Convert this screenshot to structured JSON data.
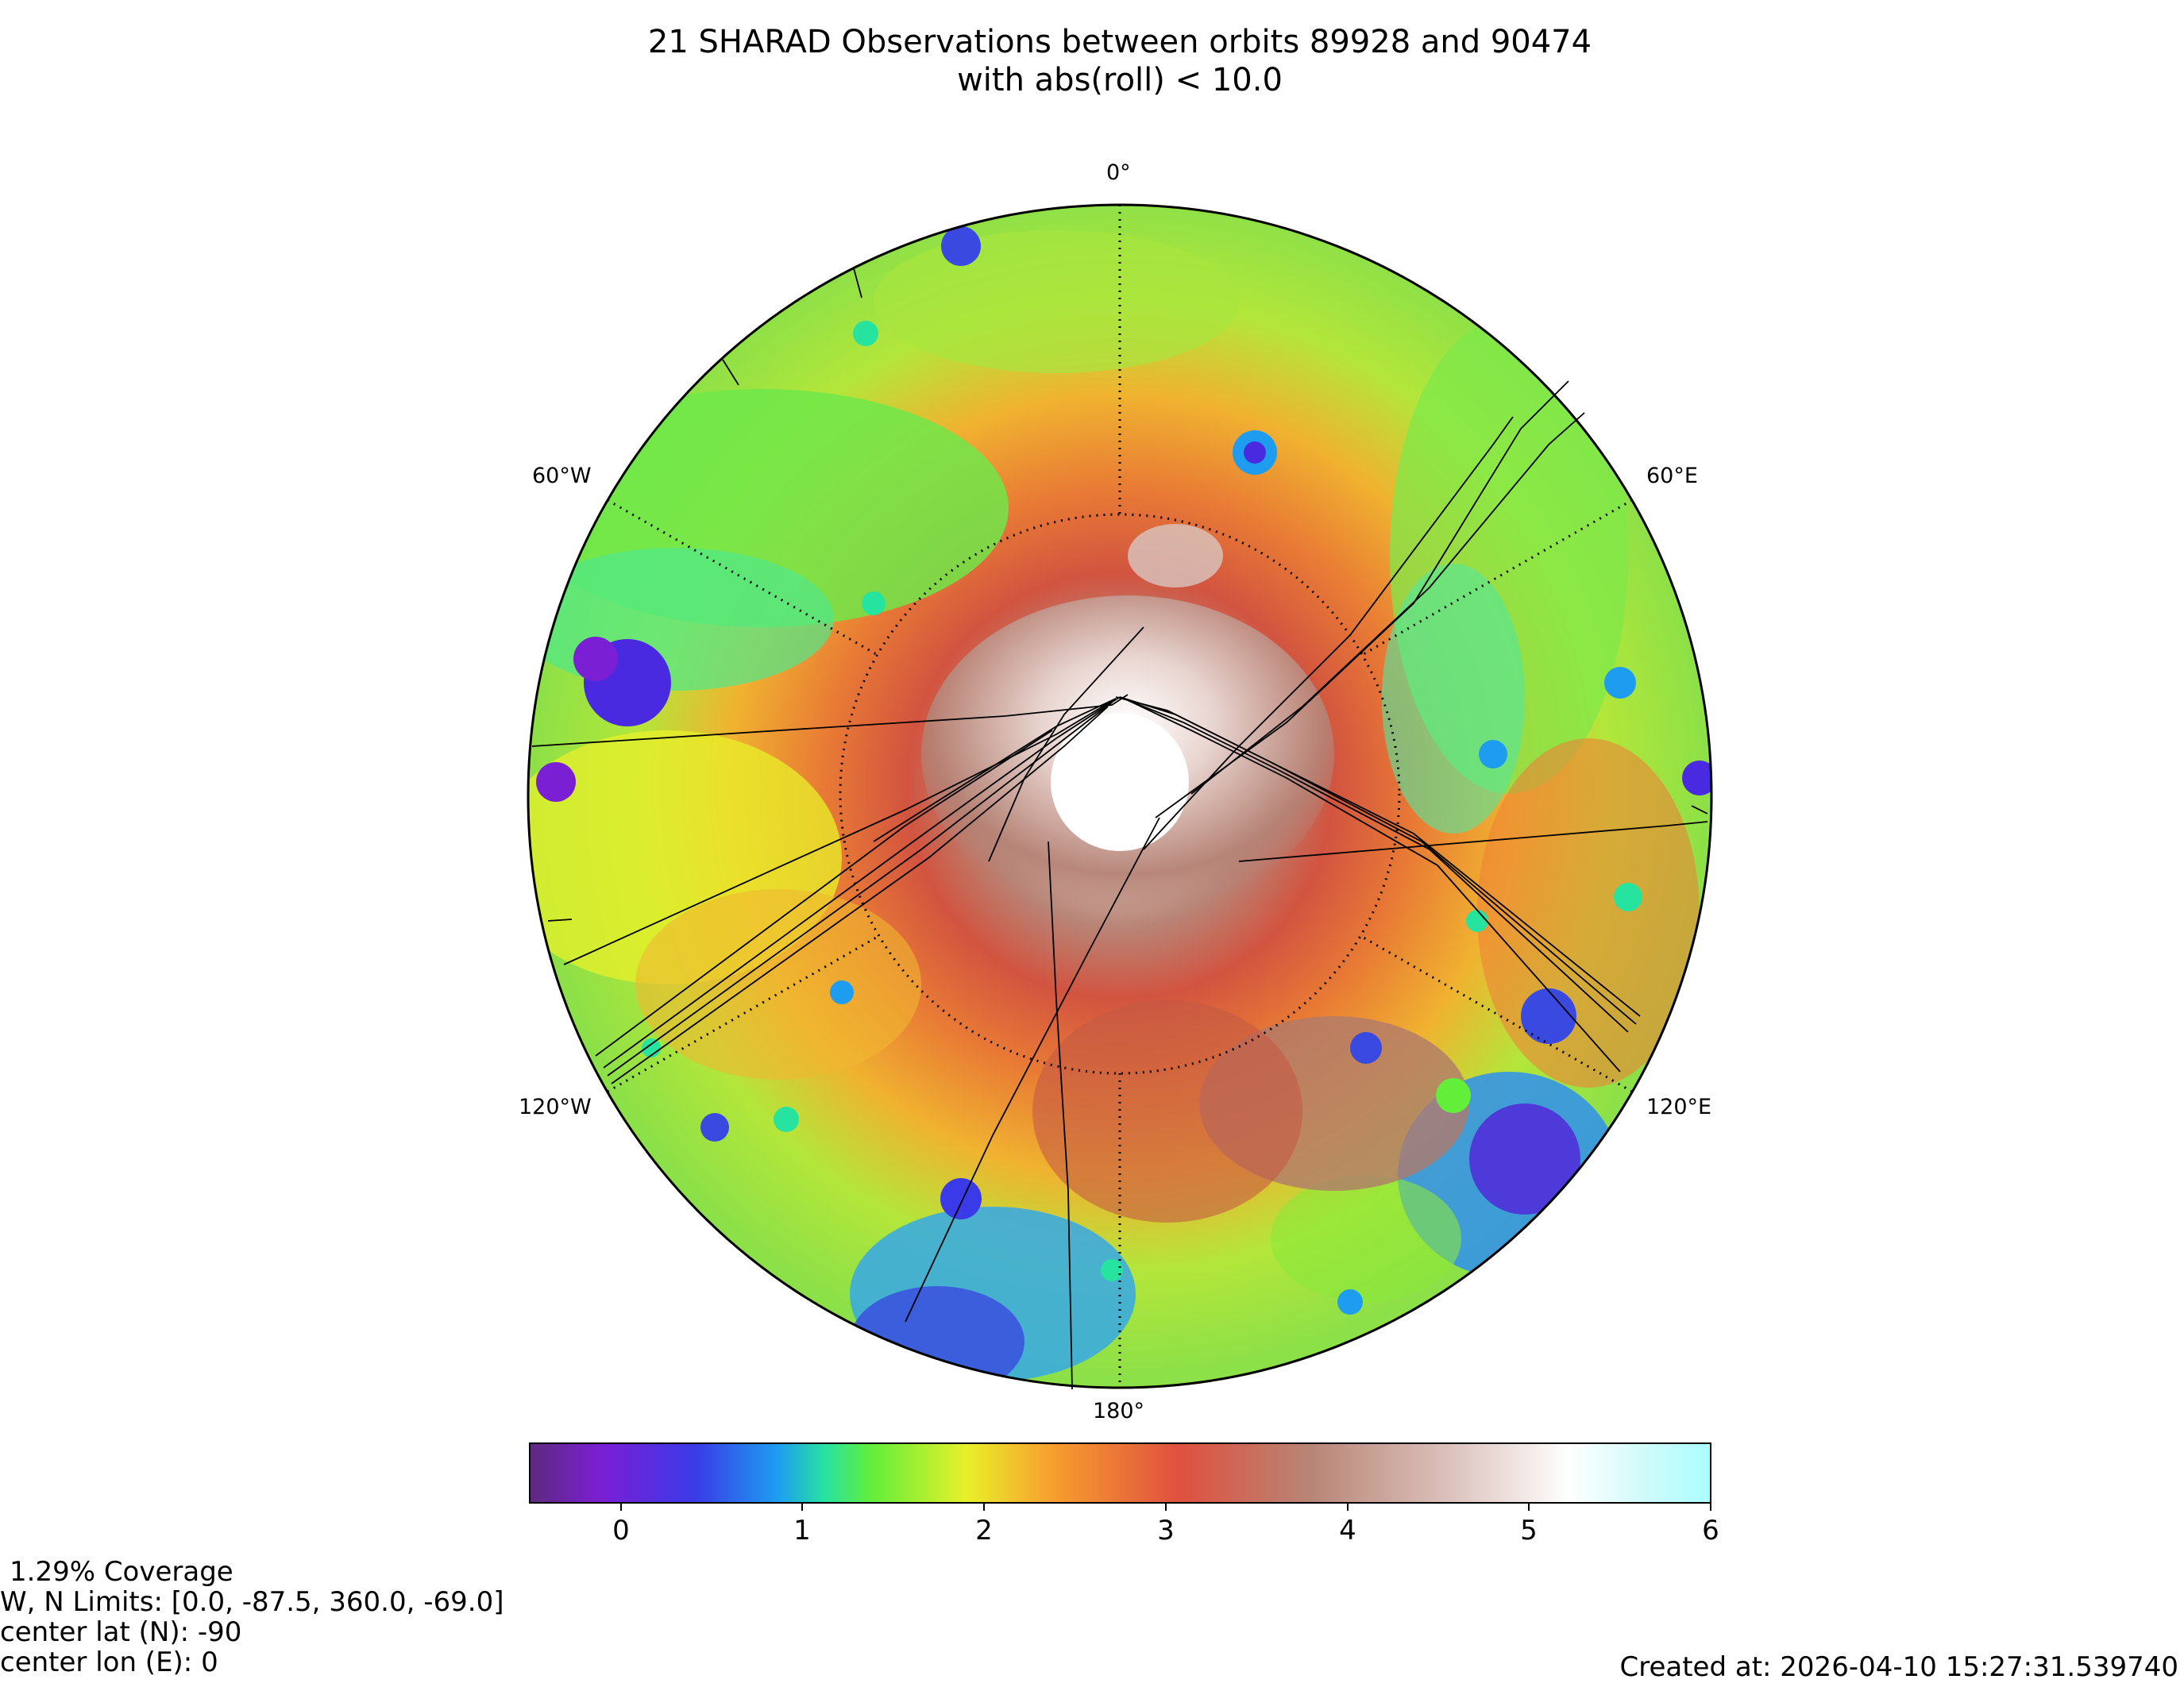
{
  "title": {
    "line1": "21 SHARAD Observations between orbits 89928 and 90474",
    "line2": "with abs(roll) < 10.0"
  },
  "map": {
    "projection": "south-polar stereographic",
    "lon_labels": {
      "top": "0°",
      "bottom": "180°",
      "upper_left": "60°W",
      "upper_right": "60°E",
      "lower_left": "120°W",
      "lower_right": "120°E"
    },
    "graticule": "dotted",
    "track_color": "#000000",
    "no_data_hole": "white"
  },
  "colorbar": {
    "ticks": [
      "0",
      "1",
      "2",
      "3",
      "4",
      "5",
      "6"
    ],
    "range": [
      -0.5,
      6.0
    ],
    "colors": [
      "#5e2a7e",
      "#7a1fd4",
      "#3a3ae8",
      "#1e9df0",
      "#27e3a0",
      "#63ee3a",
      "#e8f02a",
      "#f7a12e",
      "#e0503f",
      "#b88576",
      "#dcc2bd",
      "#ffffff",
      "#d4fafa",
      "#aaffff"
    ]
  },
  "info": {
    "coverage": "1.29% Coverage",
    "limits": "W, N Limits:  [0.0, -87.5, 360.0, -69.0]",
    "center_lat": "center lat (N): -90",
    "center_lon": "center lon (E): 0"
  },
  "created": "Created at: 2026-04-10 15:27:31.539740"
}
